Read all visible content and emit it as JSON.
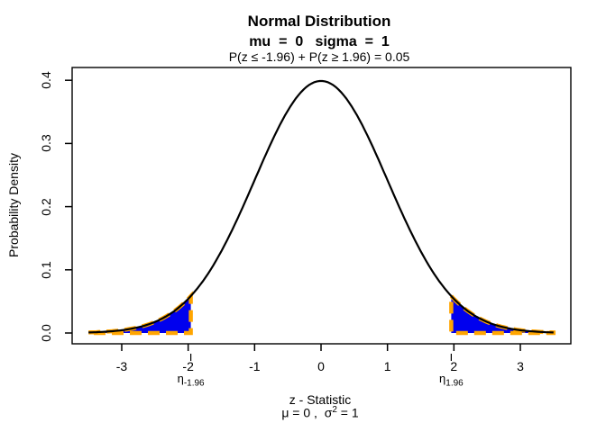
{
  "title": {
    "line1": "Normal Distribution",
    "line2": "mu  =  0   sigma  =  1",
    "line3": "P(z ≤ -1.96) + P(z ≥ 1.96) = 0.05"
  },
  "y_axis": {
    "label": "Probability Density",
    "ticks": [
      "0.0",
      "0.1",
      "0.2",
      "0.3",
      "0.4"
    ]
  },
  "x_axis": {
    "label_line1": "z - Statistic",
    "label_line2_pre": "μ = 0 ,  σ",
    "label_line2_sup": "2",
    "label_line2_post": " = 1",
    "ticks": [
      "-3",
      "-2",
      "-1",
      "0",
      "1",
      "2",
      "3"
    ]
  },
  "annotations": {
    "eta_base": "η",
    "eta_left_sub": "-1.96",
    "eta_right_sub": "1.96"
  },
  "colors": {
    "curve": "#000000",
    "tail_fill": "#0000EE",
    "tail_outline": "#FFA500",
    "axis": "#000000"
  },
  "chart_data": {
    "type": "area",
    "title": "Normal Distribution",
    "subtitle": "mu = 0  sigma = 1",
    "annotation": "P(z ≤ -1.96) + P(z ≥ 1.96) = 0.05",
    "xlabel": "z - Statistic",
    "xlabel_sub": "μ = 0 , σ² = 1",
    "ylabel": "Probability Density",
    "distribution": {
      "name": "normal",
      "mu": 0,
      "sigma": 1
    },
    "x_range": [
      -3.5,
      3.5
    ],
    "xlim": [
      -3.78,
      3.78
    ],
    "ylim": [
      0,
      0.4
    ],
    "x_ticks": [
      -3,
      -2,
      -1,
      0,
      1,
      2,
      3
    ],
    "y_ticks": [
      0,
      0.1,
      0.2,
      0.3,
      0.4
    ],
    "critical_values": [
      -1.96,
      1.96
    ],
    "critical_tick_labels": [
      "η-1.96",
      "η1.96"
    ],
    "shaded_regions": [
      {
        "from": -3.5,
        "to": -1.96,
        "area": 0.025,
        "fill": "#0000EE",
        "outline": "#FFA500",
        "outline_style": "dashed"
      },
      {
        "from": 1.96,
        "to": 3.5,
        "area": 0.025,
        "fill": "#0000EE",
        "outline": "#FFA500",
        "outline_style": "dashed"
      }
    ],
    "total_tail_probability": 0.05,
    "curve": {
      "color": "#000000",
      "points_x": [
        -3.5,
        -3.25,
        -3,
        -2.75,
        -2.5,
        -2.25,
        -2,
        -1.75,
        -1.5,
        -1.25,
        -1,
        -0.75,
        -0.5,
        -0.25,
        0,
        0.25,
        0.5,
        0.75,
        1,
        1.25,
        1.5,
        1.75,
        2,
        2.25,
        2.5,
        2.75,
        3,
        3.25,
        3.5
      ],
      "points_density": [
        0.0009,
        0.002,
        0.0044,
        0.0091,
        0.0175,
        0.0317,
        0.054,
        0.0863,
        0.1295,
        0.1826,
        0.242,
        0.3011,
        0.3521,
        0.3867,
        0.3989,
        0.3867,
        0.3521,
        0.3011,
        0.242,
        0.1826,
        0.1295,
        0.0863,
        0.054,
        0.0317,
        0.0175,
        0.0091,
        0.0044,
        0.002,
        0.0009
      ]
    },
    "grid": false,
    "legend": false
  }
}
